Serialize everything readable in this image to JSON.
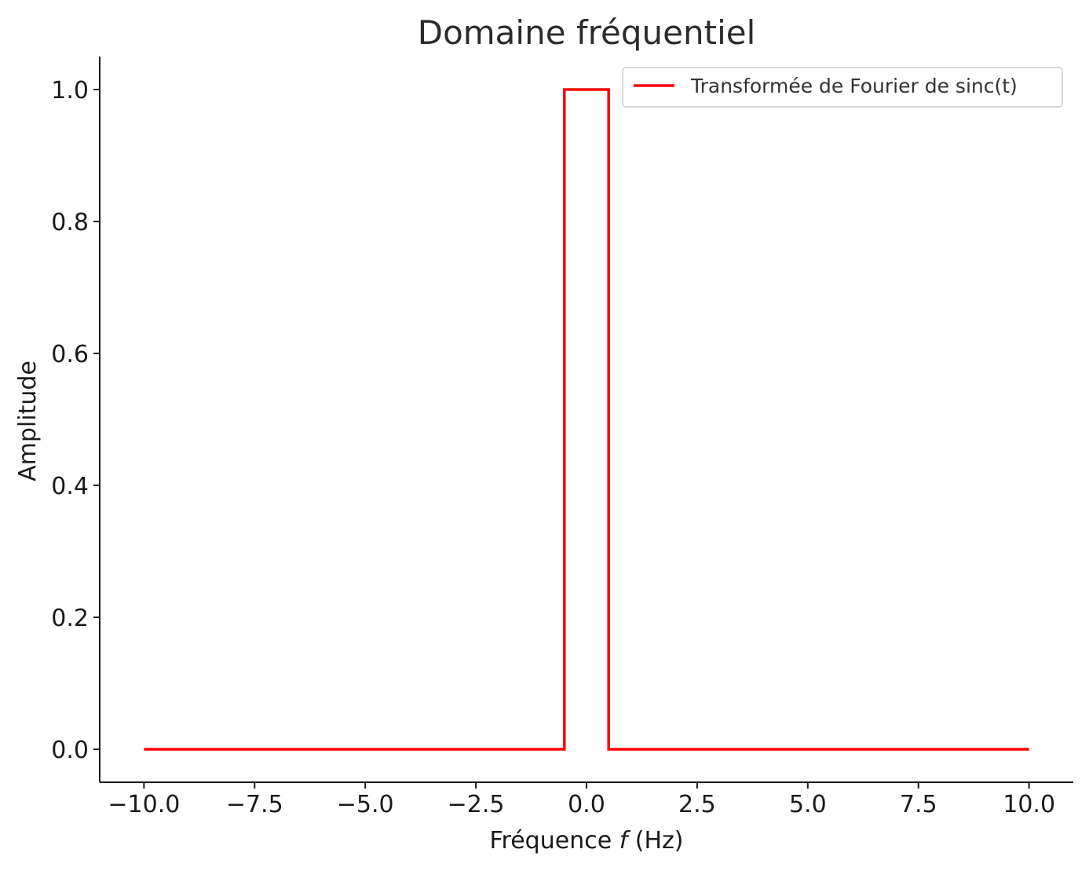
{
  "chart_data": {
    "type": "line",
    "title": "Domaine fréquentiel",
    "xlabel_prefix": "Fréquence ",
    "xlabel_var": "f",
    "xlabel_suffix": " (Hz)",
    "ylabel": "Amplitude",
    "xlim": [
      -11,
      11
    ],
    "ylim": [
      -0.05,
      1.05
    ],
    "x_ticks": [
      -10.0,
      -7.5,
      -5.0,
      -2.5,
      0.0,
      2.5,
      5.0,
      7.5,
      10.0
    ],
    "x_tick_labels": [
      "−10.0",
      "−7.5",
      "−5.0",
      "−2.5",
      "0.0",
      "2.5",
      "5.0",
      "7.5",
      "10.0"
    ],
    "y_ticks": [
      0.0,
      0.2,
      0.4,
      0.6,
      0.8,
      1.0
    ],
    "y_tick_labels": [
      "0.0",
      "0.2",
      "0.4",
      "0.6",
      "0.8",
      "1.0"
    ],
    "grid": false,
    "legend_position": "top-right",
    "series": [
      {
        "name": "Transformée de Fourier de sinc(t)",
        "color": "#ff0000",
        "x": [
          -10,
          -0.5,
          -0.5,
          0.5,
          0.5,
          10
        ],
        "y": [
          0,
          0,
          1,
          1,
          0,
          0
        ]
      }
    ]
  }
}
